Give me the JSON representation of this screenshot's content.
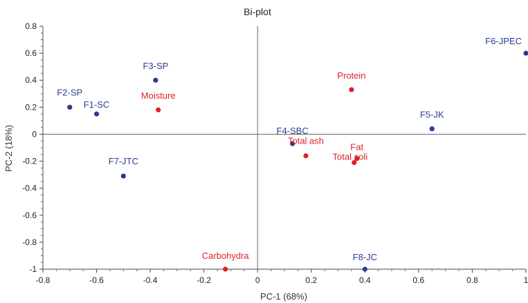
{
  "chart_data": {
    "type": "scatter",
    "title": "Bi-plot",
    "xlabel": "PC-1 (68%)",
    "ylabel": "PC-2 (18%)",
    "xlim": [
      -0.8,
      1.0
    ],
    "ylim": [
      -1.0,
      0.8
    ],
    "xticks": [
      "-0.8",
      "-0.6",
      "-0.4",
      "-0.2",
      "0",
      "0.2",
      "0.4",
      "0.6",
      "0.8",
      "1"
    ],
    "yticks": [
      "0.8",
      "0.6",
      "0.4",
      "0.2",
      "0",
      "-0.2",
      "-0.4",
      "-0.6",
      "-0.8",
      "-1"
    ],
    "grid": false,
    "series": [
      {
        "color": "#2b3d8f",
        "points": [
          {
            "label": "F1-SC",
            "x": -0.6,
            "y": 0.15
          },
          {
            "label": "F2-SP",
            "x": -0.7,
            "y": 0.2
          },
          {
            "label": "F3-SP",
            "x": -0.38,
            "y": 0.4
          },
          {
            "label": "F4-SBC",
            "x": 0.13,
            "y": -0.07
          },
          {
            "label": "F5-JK",
            "x": 0.65,
            "y": 0.04
          },
          {
            "label": "F6-JPEC",
            "x": 1.0,
            "y": 0.6
          },
          {
            "label": "F7-JTC",
            "x": -0.5,
            "y": -0.31
          },
          {
            "label": "F8-JC",
            "x": 0.4,
            "y": -1.0
          }
        ]
      },
      {
        "color": "#e0202a",
        "points": [
          {
            "label": "Moisture",
            "x": -0.37,
            "y": 0.18
          },
          {
            "label": "Protein",
            "x": 0.35,
            "y": 0.33
          },
          {
            "label": "Total ash",
            "x": 0.18,
            "y": -0.16
          },
          {
            "label": "Fat",
            "x": 0.37,
            "y": -0.18
          },
          {
            "label": "Total soli",
            "x": 0.36,
            "y": -0.21
          },
          {
            "label": "Carbohydra",
            "x": -0.12,
            "y": -1.0
          }
        ]
      }
    ]
  }
}
